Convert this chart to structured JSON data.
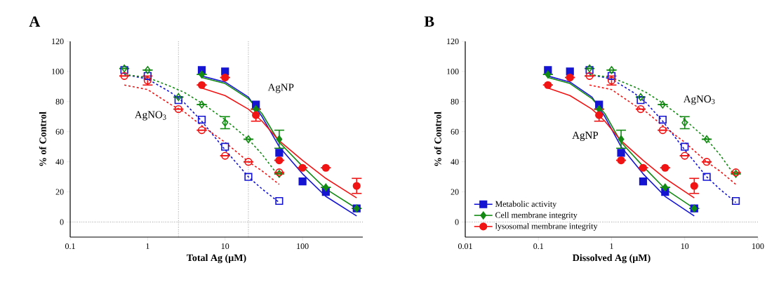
{
  "chart_data": [
    {
      "type": "scatter",
      "title": "A",
      "xlabel": "Total Ag (µM)",
      "ylabel": "% of Control",
      "log": "x",
      "xlim": [
        0.1,
        600
      ],
      "ylim": [
        -10,
        120
      ],
      "xticks": [
        0.1,
        1,
        10,
        100
      ],
      "yticks": [
        0,
        20,
        40,
        60,
        80,
        100,
        120
      ],
      "legend": false,
      "ref_lines": [
        {
          "axis": "x",
          "value": 2.5,
          "line_style": "dotted",
          "color": "#000000"
        },
        {
          "axis": "x",
          "value": 20,
          "line_style": "dotted",
          "color": "#000000"
        },
        {
          "axis": "y",
          "value": 0,
          "line_style": "dotted",
          "color": "#000000"
        }
      ],
      "annotations": [
        "AgNO$_{3}$",
        "AgNP"
      ],
      "series": [
        {
          "type": "line",
          "color": "#1414d2",
          "line_style": "dashed",
          "marker": "none",
          "x": [
            0.5,
            1,
            2,
            3,
            5,
            10,
            20,
            30,
            50
          ],
          "values": [
            98,
            95,
            86,
            79,
            67,
            48,
            30,
            22,
            13
          ]
        },
        {
          "type": "line",
          "color": "#138a13",
          "line_style": "dashed",
          "marker": "none",
          "x": [
            0.5,
            1,
            2,
            3,
            5,
            10,
            20,
            30,
            50
          ],
          "values": [
            98,
            96,
            90,
            86,
            79,
            68,
            55,
            45,
            30
          ]
        },
        {
          "type": "line",
          "color": "#f01414",
          "line_style": "dashed",
          "marker": "none",
          "x": [
            0.5,
            1,
            2,
            3,
            5,
            10,
            20,
            30,
            50
          ],
          "values": [
            91,
            88,
            78,
            73,
            64,
            53,
            40,
            34,
            25
          ]
        },
        {
          "type": "line",
          "color": "#1414d2",
          "line_style": "solid",
          "marker": "none",
          "x": [
            5,
            10,
            20,
            30,
            50,
            100,
            200,
            500
          ],
          "values": [
            97,
            93,
            83,
            70,
            50,
            32,
            17,
            4
          ]
        },
        {
          "type": "line",
          "color": "#138a13",
          "line_style": "solid",
          "marker": "none",
          "x": [
            5,
            10,
            20,
            30,
            50,
            100,
            200,
            500
          ],
          "values": [
            96,
            92,
            82,
            72,
            53,
            37,
            22,
            9
          ]
        },
        {
          "type": "line",
          "color": "#f01414",
          "line_style": "solid",
          "marker": "none",
          "x": [
            5,
            10,
            20,
            30,
            50,
            100,
            200,
            500
          ],
          "values": [
            89,
            84,
            75,
            67,
            54,
            41,
            29,
            16
          ]
        },
        {
          "color": "#1414d2",
          "marker": "square",
          "line_style": "dashed",
          "x": [
            0.5,
            1,
            2.5,
            5,
            10,
            20,
            50
          ],
          "values": [
            101,
            97,
            81,
            68,
            50,
            30,
            14
          ]
        },
        {
          "color": "#138a13",
          "marker": "diamond",
          "line_style": "dashed",
          "x": [
            0.5,
            1,
            2.5,
            5,
            10,
            20,
            50
          ],
          "values": [
            102,
            101,
            83,
            78,
            66,
            55,
            32
          ],
          "errors": [
            null,
            null,
            null,
            null,
            4,
            null,
            null
          ]
        },
        {
          "color": "#f01414",
          "marker": "circle",
          "line_style": "dashed",
          "x": [
            0.5,
            1,
            2.5,
            5,
            10,
            20,
            50
          ],
          "values": [
            97,
            94,
            75,
            61,
            44,
            40,
            33
          ],
          "errors": [
            null,
            3,
            null,
            null,
            null,
            null,
            null
          ]
        },
        {
          "color": "#1414d2",
          "marker": "square",
          "line_style": "solid",
          "x": [
            5,
            10,
            25,
            50,
            100,
            200,
            500
          ],
          "values": [
            101,
            100,
            78,
            46,
            27,
            20,
            9
          ]
        },
        {
          "color": "#138a13",
          "marker": "diamond",
          "line_style": "solid",
          "x": [
            5,
            10,
            25,
            50,
            100,
            200,
            500
          ],
          "values": [
            98,
            null,
            75,
            55,
            null,
            23,
            9
          ],
          "errors": [
            null,
            null,
            null,
            6,
            null,
            null,
            null
          ]
        },
        {
          "color": "#f01414",
          "marker": "circle",
          "line_style": "solid",
          "x": [
            5,
            10,
            25,
            50,
            100,
            200,
            500
          ],
          "values": [
            91,
            96,
            71,
            41,
            36,
            36,
            24
          ],
          "errors": [
            null,
            null,
            4,
            null,
            null,
            null,
            5
          ]
        }
      ]
    },
    {
      "type": "scatter",
      "title": "B",
      "xlabel": "Dissolved Ag (µM)",
      "ylabel": "% of Control",
      "log": "x",
      "xlim": [
        0.01,
        100
      ],
      "ylim": [
        -10,
        120
      ],
      "xticks": [
        0.01,
        0.1,
        1,
        10,
        100
      ],
      "yticks": [
        0,
        20,
        40,
        60,
        80,
        100,
        120
      ],
      "legend": "bottom left",
      "ref_lines": [
        {
          "axis": "y",
          "value": 0,
          "line_style": "dotted",
          "color": "#000000"
        }
      ],
      "annotations": [
        "AgNO$_{3}$",
        "AgNP"
      ],
      "series": [
        {
          "type": "line",
          "color": "#1414d2",
          "line_style": "dashed",
          "marker": "none",
          "x": [
            0.5,
            1,
            2,
            3,
            5,
            10,
            20,
            30,
            50
          ],
          "values": [
            98,
            95,
            86,
            79,
            67,
            48,
            30,
            22,
            13
          ]
        },
        {
          "type": "line",
          "color": "#138a13",
          "line_style": "dashed",
          "marker": "none",
          "x": [
            0.5,
            1,
            2,
            3,
            5,
            10,
            20,
            30,
            50
          ],
          "values": [
            98,
            96,
            90,
            86,
            79,
            68,
            55,
            45,
            30
          ]
        },
        {
          "type": "line",
          "color": "#f01414",
          "line_style": "dashed",
          "marker": "none",
          "x": [
            0.5,
            1,
            2,
            3,
            5,
            10,
            20,
            30,
            50
          ],
          "values": [
            91,
            88,
            78,
            73,
            64,
            53,
            40,
            34,
            25
          ]
        },
        {
          "type": "line",
          "color": "#1414d2",
          "line_style": "solid",
          "marker": "none",
          "x": [
            0.135,
            0.27,
            0.54,
            0.81,
            1.35,
            2.7,
            5.4,
            13.5
          ],
          "values": [
            97,
            93,
            83,
            70,
            50,
            32,
            17,
            4
          ]
        },
        {
          "type": "line",
          "color": "#138a13",
          "line_style": "solid",
          "marker": "none",
          "x": [
            0.135,
            0.27,
            0.54,
            0.81,
            1.35,
            2.7,
            5.4,
            13.5
          ],
          "values": [
            96,
            92,
            82,
            72,
            53,
            37,
            22,
            9
          ]
        },
        {
          "type": "line",
          "color": "#f01414",
          "line_style": "solid",
          "marker": "none",
          "x": [
            0.135,
            0.27,
            0.54,
            0.81,
            1.35,
            2.7,
            5.4,
            13.5
          ],
          "values": [
            89,
            84,
            75,
            67,
            54,
            41,
            29,
            16
          ]
        },
        {
          "color": "#1414d2",
          "marker": "square",
          "line_style": "dashed",
          "x": [
            0.5,
            1,
            2.5,
            5,
            10,
            20,
            50
          ],
          "values": [
            101,
            97,
            81,
            68,
            50,
            30,
            14
          ]
        },
        {
          "color": "#138a13",
          "marker": "diamond",
          "line_style": "dashed",
          "x": [
            0.5,
            1,
            2.5,
            5,
            10,
            20,
            50
          ],
          "values": [
            102,
            101,
            83,
            78,
            66,
            55,
            32
          ],
          "errors": [
            null,
            null,
            null,
            null,
            4,
            null,
            null
          ]
        },
        {
          "color": "#f01414",
          "marker": "circle",
          "line_style": "dashed",
          "x": [
            0.5,
            1,
            2.5,
            5,
            10,
            20,
            50
          ],
          "values": [
            97,
            94,
            75,
            61,
            44,
            40,
            33
          ],
          "errors": [
            null,
            3,
            null,
            null,
            null,
            null,
            null
          ]
        },
        {
          "name": "Metabolic activity",
          "color": "#1414d2",
          "marker": "square",
          "line_style": "solid",
          "x": [
            0.135,
            0.27,
            0.675,
            1.35,
            2.7,
            5.4,
            13.5
          ],
          "values": [
            101,
            100,
            78,
            46,
            27,
            20,
            9
          ]
        },
        {
          "name": "Cell membrane integrity",
          "color": "#138a13",
          "marker": "diamond",
          "line_style": "solid",
          "x": [
            0.135,
            0.27,
            0.675,
            1.35,
            2.7,
            5.4,
            13.5
          ],
          "values": [
            98,
            null,
            75,
            55,
            null,
            23,
            9
          ],
          "errors": [
            null,
            null,
            null,
            6,
            null,
            null,
            null
          ]
        },
        {
          "name": "lysosomal membrane integrity",
          "color": "#f01414",
          "marker": "circle",
          "line_style": "solid",
          "x": [
            0.135,
            0.27,
            0.675,
            1.35,
            2.7,
            5.4,
            13.5
          ],
          "values": [
            91,
            96,
            71,
            41,
            36,
            36,
            24
          ],
          "errors": [
            null,
            null,
            4,
            null,
            null,
            null,
            5
          ]
        }
      ]
    }
  ]
}
